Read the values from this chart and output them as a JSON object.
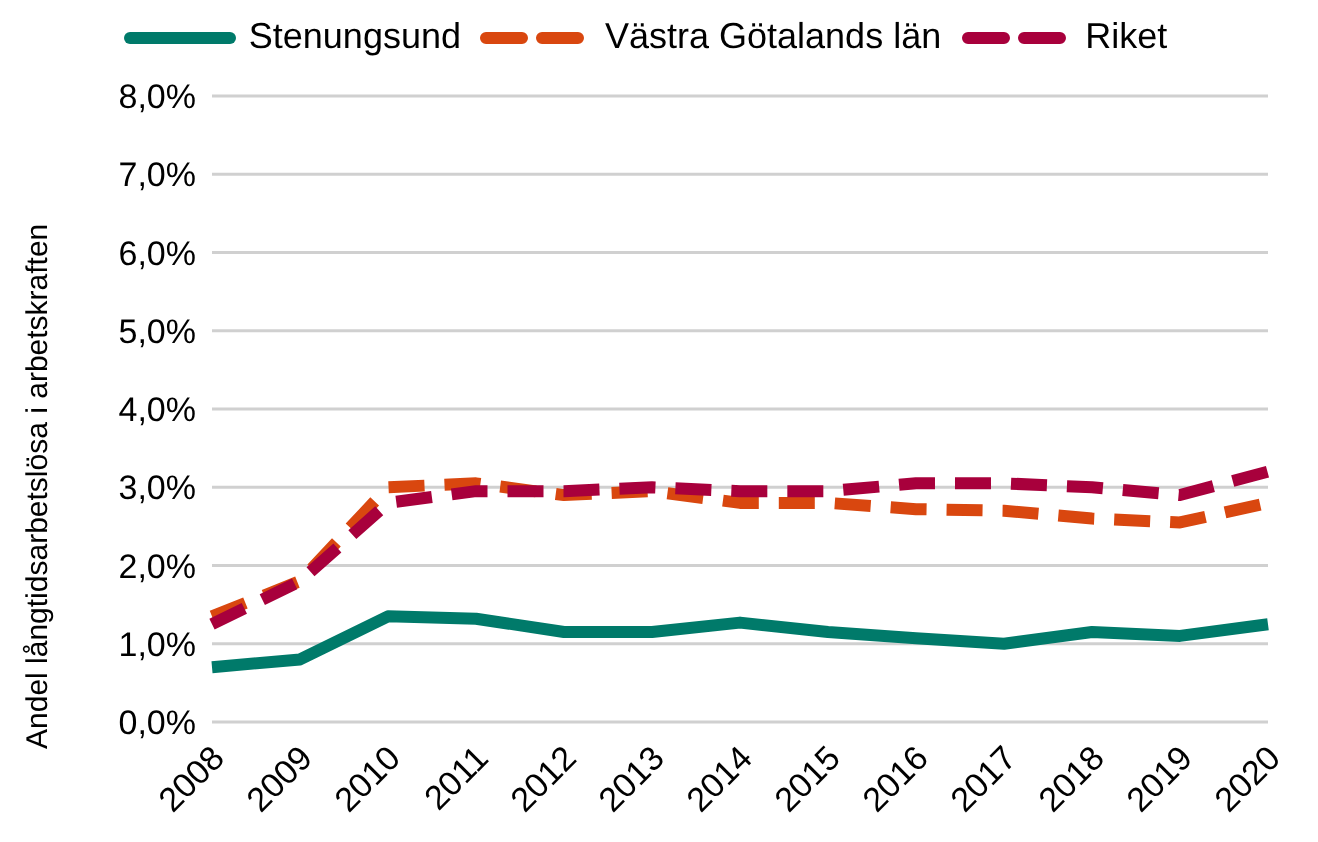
{
  "chart_data": {
    "type": "line",
    "ylabel": "Andel långtidsarbetslösa i arbetskraften",
    "categories": [
      "2008",
      "2009",
      "2010",
      "2011",
      "2012",
      "2013",
      "2014",
      "2015",
      "2016",
      "2017",
      "2018",
      "2019",
      "2020"
    ],
    "series": [
      {
        "name": "Stenungsund",
        "color": "#007a6a",
        "line_style": "solid",
        "values": [
          0.7,
          0.8,
          1.35,
          1.32,
          1.15,
          1.15,
          1.27,
          1.15,
          1.07,
          1.0,
          1.15,
          1.1,
          1.25
        ]
      },
      {
        "name": "Västra Götalands län",
        "color": "#d9470f",
        "line_style": "dashed",
        "values": [
          1.35,
          1.8,
          3.0,
          3.05,
          2.9,
          2.95,
          2.8,
          2.8,
          2.72,
          2.7,
          2.6,
          2.55,
          2.8
        ]
      },
      {
        "name": "Riket",
        "color": "#a8003c",
        "line_style": "dashed",
        "values": [
          1.25,
          1.8,
          2.8,
          2.95,
          2.95,
          3.0,
          2.95,
          2.95,
          3.05,
          3.05,
          3.0,
          2.9,
          3.2
        ]
      }
    ],
    "ylim": [
      0,
      8
    ],
    "yticks": [
      {
        "value": 0,
        "label": "0,0%"
      },
      {
        "value": 1,
        "label": "1,0%"
      },
      {
        "value": 2,
        "label": "2,0%"
      },
      {
        "value": 3,
        "label": "3,0%"
      },
      {
        "value": 4,
        "label": "4,0%"
      },
      {
        "value": 5,
        "label": "5,0%"
      },
      {
        "value": 6,
        "label": "6,0%"
      },
      {
        "value": 7,
        "label": "7,0%"
      },
      {
        "value": 8,
        "label": "8,0%"
      }
    ],
    "grid": "y",
    "legend": "top",
    "marker": "none"
  }
}
